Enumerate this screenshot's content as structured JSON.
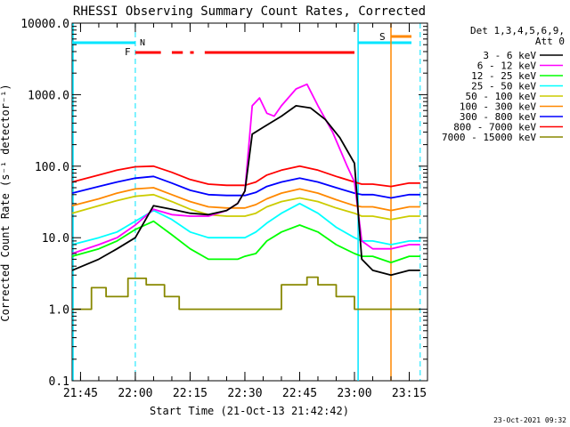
{
  "chart_data": {
    "type": "line",
    "title": "RHESSI Observing Summary Count Rates, Corrected",
    "xlabel": "Start Time (21-Oct-13 21:42:42)",
    "ylabel": "Corrected Count Rate (s⁻¹ detector⁻¹)",
    "ylog": true,
    "ylim": [
      0.1,
      10000
    ],
    "xlim": [
      "21:42:42",
      "23:20:00"
    ],
    "y_ticks": [
      "0.1",
      "1.0",
      "10.0",
      "100.0",
      "1000.0",
      "10000.0"
    ],
    "x_ticks": [
      "21:45",
      "22:00",
      "22:15",
      "22:30",
      "22:45",
      "23:00",
      "23:15"
    ],
    "legend_header": [
      "Det 1,3,4,5,6,9,",
      "Att 0"
    ],
    "legend_position": "right",
    "timestamp": "23-Oct-2021 09:32",
    "annotations": {
      "flare_flag": "F",
      "saa_flag": "S",
      "night_flag": "N"
    },
    "series": [
      {
        "name": "3 - 6 keV",
        "color": "#000000",
        "x": [
          "21:42:42",
          "21:50",
          "21:55",
          "22:00",
          "22:05",
          "22:10",
          "22:15",
          "22:20",
          "22:25",
          "22:28",
          "22:30",
          "22:32",
          "22:35",
          "22:40",
          "22:44",
          "22:48",
          "22:52",
          "22:56",
          "23:00",
          "23:02",
          "23:05",
          "23:10",
          "23:15",
          "23:18"
        ],
        "y": [
          3.5,
          5,
          7,
          10,
          28,
          25,
          22,
          21,
          24,
          30,
          45,
          280,
          350,
          500,
          700,
          650,
          450,
          250,
          110,
          5,
          3.5,
          3,
          3.5,
          3.5
        ]
      },
      {
        "name": "6 - 12 keV",
        "color": "#ff00ff",
        "x": [
          "21:42:42",
          "21:50",
          "21:55",
          "22:00",
          "22:05",
          "22:10",
          "22:15",
          "22:20",
          "22:25",
          "22:28",
          "22:30",
          "22:32",
          "22:34",
          "22:36",
          "22:38",
          "22:40",
          "22:44",
          "22:47",
          "22:50",
          "22:54",
          "22:58",
          "23:00",
          "23:02",
          "23:05",
          "23:10",
          "23:15",
          "23:18"
        ],
        "y": [
          6,
          8,
          10,
          15,
          25,
          21,
          20,
          20,
          24,
          30,
          45,
          700,
          900,
          550,
          500,
          700,
          1200,
          1400,
          700,
          300,
          100,
          60,
          9,
          7,
          7,
          8,
          8
        ]
      },
      {
        "name": "12 - 25 keV",
        "color": "#00ff00",
        "x": [
          "21:42:42",
          "21:50",
          "21:55",
          "22:00",
          "22:05",
          "22:10",
          "22:15",
          "22:20",
          "22:25",
          "22:28",
          "22:30",
          "22:33",
          "22:36",
          "22:40",
          "22:45",
          "22:50",
          "22:55",
          "23:00",
          "23:02",
          "23:05",
          "23:10",
          "23:15",
          "23:18"
        ],
        "y": [
          5.5,
          7,
          9,
          13,
          17,
          11,
          7,
          5,
          5,
          5,
          5.5,
          6,
          9,
          12,
          15,
          12,
          8,
          6,
          5.5,
          5.5,
          4.5,
          5.5,
          5.5
        ]
      },
      {
        "name": "25 - 50 keV",
        "color": "#00ffff",
        "x": [
          "21:42:42",
          "21:50",
          "21:55",
          "22:00",
          "22:05",
          "22:10",
          "22:15",
          "22:20",
          "22:25",
          "22:28",
          "22:30",
          "22:33",
          "22:36",
          "22:40",
          "22:45",
          "22:50",
          "22:55",
          "23:00",
          "23:02",
          "23:05",
          "23:10",
          "23:15",
          "23:18"
        ],
        "y": [
          8,
          10,
          12,
          17,
          24,
          18,
          12,
          10,
          10,
          10,
          10,
          12,
          16,
          22,
          30,
          22,
          14,
          10,
          9,
          9,
          8,
          9,
          9
        ]
      },
      {
        "name": "50 - 100 keV",
        "color": "#cccc00",
        "x": [
          "21:42:42",
          "21:50",
          "21:55",
          "22:00",
          "22:05",
          "22:10",
          "22:15",
          "22:20",
          "22:25",
          "22:28",
          "22:30",
          "22:33",
          "22:36",
          "22:40",
          "22:45",
          "22:50",
          "22:55",
          "23:00",
          "23:02",
          "23:05",
          "23:10",
          "23:15",
          "23:18"
        ],
        "y": [
          22,
          28,
          33,
          38,
          40,
          32,
          25,
          21,
          20,
          20,
          20,
          22,
          27,
          32,
          36,
          32,
          26,
          22,
          20,
          20,
          18,
          20,
          20
        ]
      },
      {
        "name": "100 - 300 keV",
        "color": "#ff8800",
        "x": [
          "21:42:42",
          "21:50",
          "21:55",
          "22:00",
          "22:05",
          "22:10",
          "22:15",
          "22:20",
          "22:25",
          "22:28",
          "22:30",
          "22:33",
          "22:36",
          "22:40",
          "22:45",
          "22:50",
          "22:55",
          "23:00",
          "23:02",
          "23:05",
          "23:10",
          "23:15",
          "23:18"
        ],
        "y": [
          28,
          35,
          42,
          48,
          50,
          40,
          32,
          27,
          26,
          26,
          26,
          29,
          35,
          42,
          48,
          42,
          34,
          28,
          27,
          27,
          24,
          27,
          27
        ]
      },
      {
        "name": "300 - 800 keV",
        "color": "#0000ff",
        "x": [
          "21:42:42",
          "21:50",
          "21:55",
          "22:00",
          "22:05",
          "22:10",
          "22:15",
          "22:20",
          "22:25",
          "22:28",
          "22:30",
          "22:33",
          "22:36",
          "22:40",
          "22:45",
          "22:50",
          "22:55",
          "23:00",
          "23:02",
          "23:05",
          "23:10",
          "23:15",
          "23:18"
        ],
        "y": [
          42,
          52,
          60,
          68,
          72,
          58,
          46,
          40,
          39,
          39,
          39,
          43,
          52,
          60,
          68,
          60,
          50,
          42,
          40,
          40,
          36,
          40,
          40
        ]
      },
      {
        "name": "800 - 7000 keV",
        "color": "#ff0000",
        "x": [
          "21:42:42",
          "21:50",
          "21:55",
          "22:00",
          "22:05",
          "22:10",
          "22:15",
          "22:20",
          "22:25",
          "22:28",
          "22:30",
          "22:33",
          "22:36",
          "22:40",
          "22:45",
          "22:50",
          "22:55",
          "23:00",
          "23:02",
          "23:05",
          "23:10",
          "23:15",
          "23:18"
        ],
        "y": [
          60,
          75,
          88,
          98,
          100,
          82,
          65,
          56,
          54,
          54,
          54,
          60,
          75,
          88,
          100,
          88,
          72,
          60,
          56,
          56,
          52,
          58,
          58
        ]
      },
      {
        "name": "7000 - 15000 keV",
        "color": "#888800",
        "x": [
          "21:42:42",
          "21:48",
          "21:48",
          "21:52",
          "21:52",
          "21:58",
          "21:58",
          "22:03",
          "22:03",
          "22:08",
          "22:08",
          "22:12",
          "22:12",
          "22:40",
          "22:40",
          "22:47",
          "22:47",
          "22:50",
          "22:50",
          "22:55",
          "22:55",
          "23:00",
          "23:00",
          "23:18"
        ],
        "y": [
          1,
          1,
          2,
          2,
          1.5,
          1.5,
          2.7,
          2.7,
          2.2,
          2.2,
          1.5,
          1.5,
          1,
          1,
          2.2,
          2.2,
          2.8,
          2.8,
          2.2,
          2.2,
          1.5,
          1.5,
          1,
          1
        ]
      }
    ]
  }
}
